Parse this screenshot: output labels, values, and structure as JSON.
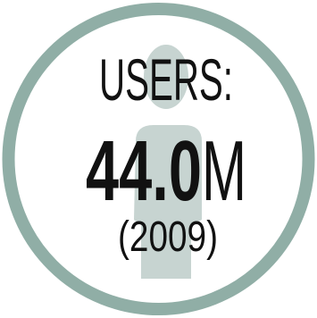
{
  "badge": {
    "label": "USERS:",
    "value_number": "44.0",
    "value_unit": "M",
    "year": "(2009)",
    "icon": "person-silhouette-icon",
    "colors": {
      "ring": "#90aea6",
      "silhouette": "#c7d4d1",
      "text": "#111111",
      "background": "#ffffff"
    }
  }
}
